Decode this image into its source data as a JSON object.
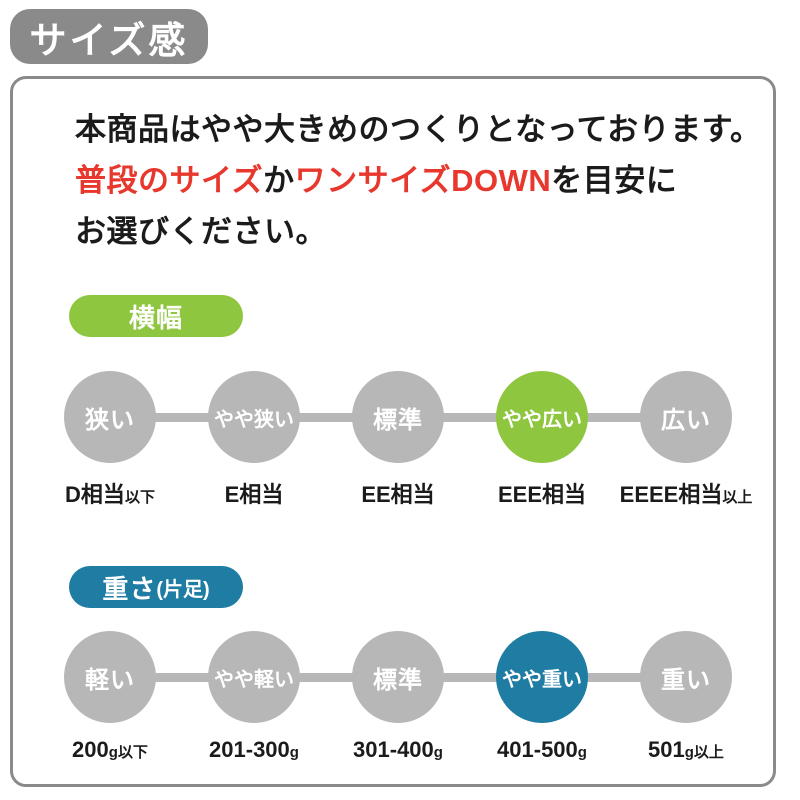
{
  "badge": {
    "label": "サイズ感"
  },
  "colors": {
    "badge_bg": "#8a8a8a",
    "panel_border": "#8a8a8a",
    "circle_gray": "#b7b7b7",
    "connector_gray": "#b7b7b7",
    "accent_red": "#e8382d",
    "width_green": "#8ec63f",
    "weight_blue": "#1f7ca3",
    "text_black": "#1b1b1b"
  },
  "intro": {
    "line1": "本商品はやや大きめのつくりとなっております。",
    "line2": {
      "red1": "普段のサイズ",
      "black1": "か",
      "red2": "ワンサイズDOWN",
      "black2": "を目安に"
    },
    "line3": "お選びください。"
  },
  "sections": [
    {
      "name": "width",
      "pill": {
        "label": "横幅",
        "suffix": "",
        "color": "#8ec63f"
      },
      "steps": [
        {
          "circle": "狭い",
          "value": "D相当",
          "value_small": "以下",
          "active": false
        },
        {
          "circle": "やや狭い",
          "value": "E相当",
          "value_small": "",
          "active": false
        },
        {
          "circle": "標準",
          "value": "EE相当",
          "value_small": "",
          "active": false
        },
        {
          "circle": "やや広い",
          "value": "EEE相当",
          "value_small": "",
          "active": true
        },
        {
          "circle": "広い",
          "value": "EEEE相当",
          "value_small": "以上",
          "active": false
        }
      ]
    },
    {
      "name": "weight",
      "pill": {
        "label": "重さ",
        "suffix": "(片足)",
        "color": "#1f7ca3"
      },
      "steps": [
        {
          "circle": "軽い",
          "value": "200",
          "value_small": "g以下",
          "active": false
        },
        {
          "circle": "やや軽い",
          "value": "201-300",
          "value_small": "g",
          "active": false
        },
        {
          "circle": "標準",
          "value": "301-400",
          "value_small": "g",
          "active": false
        },
        {
          "circle": "やや重い",
          "value": "401-500",
          "value_small": "g",
          "active": true
        },
        {
          "circle": "重い",
          "value": "501",
          "value_small": "g以上",
          "active": false
        }
      ]
    }
  ]
}
